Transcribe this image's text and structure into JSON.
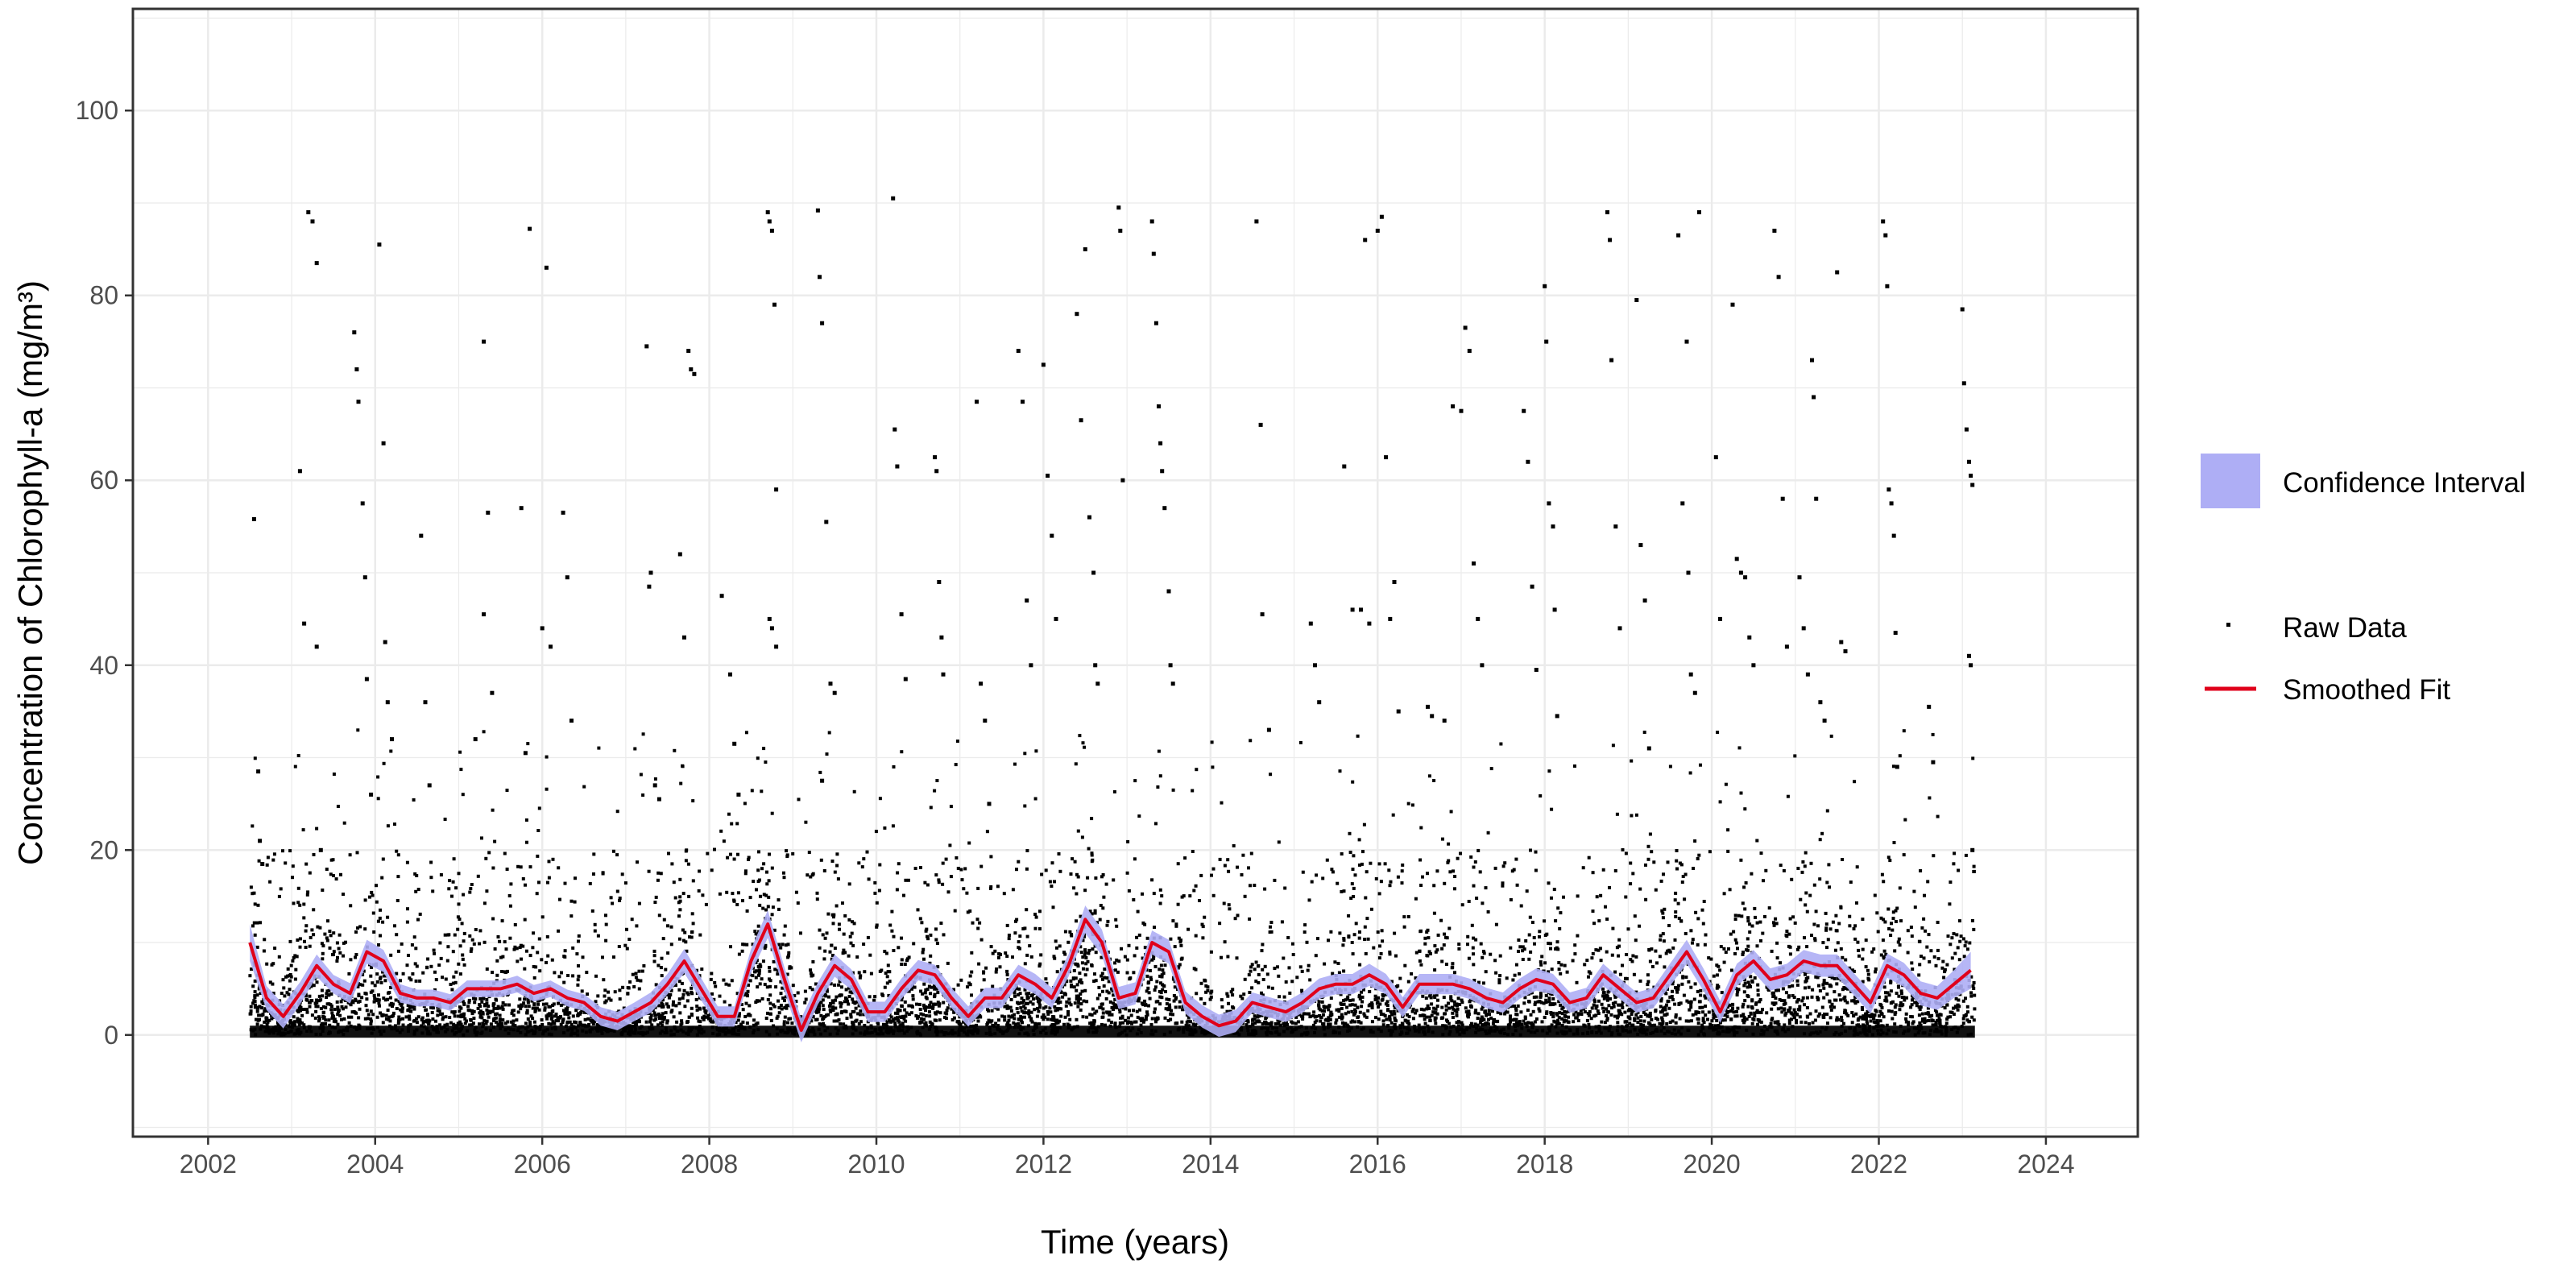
{
  "chart_data": {
    "type": "scatter",
    "xlabel": "Time (years)",
    "ylabel": "Concentration of Chlorophyll-a (mg/m³)",
    "xlim": [
      2001.1,
      2025.1
    ],
    "ylim": [
      -11,
      111
    ],
    "x_ticks": [
      2002,
      2004,
      2006,
      2008,
      2010,
      2012,
      2014,
      2016,
      2018,
      2020,
      2022,
      2024
    ],
    "y_ticks": [
      0,
      20,
      40,
      60,
      80,
      100
    ],
    "x_tick_labels": [
      "2002",
      "2004",
      "2006",
      "2008",
      "2010",
      "2012",
      "2014",
      "2016",
      "2018",
      "2020",
      "2022",
      "2024"
    ],
    "y_tick_labels": [
      "0",
      "20",
      "40",
      "60",
      "80",
      "100"
    ],
    "grid": true,
    "legend_position": "right",
    "legend": {
      "ci_label": "Confidence Interval",
      "raw_label": "Raw Data",
      "fit_label": "Smoothed Fit"
    },
    "colors": {
      "raw": "#000000",
      "fit": "#e0001b",
      "ci": "#aeaef5",
      "grid": "#ebebeb",
      "panel_border": "#333333"
    },
    "data_range": [
      2002.5,
      2023.15
    ],
    "series": [
      {
        "name": "Smoothed Fit",
        "x": [
          2002.5,
          2002.7,
          2002.9,
          2003.1,
          2003.3,
          2003.5,
          2003.7,
          2003.9,
          2004.1,
          2004.3,
          2004.5,
          2004.7,
          2004.9,
          2005.1,
          2005.3,
          2005.5,
          2005.7,
          2005.9,
          2006.1,
          2006.3,
          2006.5,
          2006.7,
          2006.9,
          2007.1,
          2007.3,
          2007.5,
          2007.7,
          2007.9,
          2008.1,
          2008.3,
          2008.5,
          2008.7,
          2008.9,
          2009.1,
          2009.3,
          2009.5,
          2009.7,
          2009.9,
          2010.1,
          2010.3,
          2010.5,
          2010.7,
          2010.9,
          2011.1,
          2011.3,
          2011.5,
          2011.7,
          2011.9,
          2012.1,
          2012.3,
          2012.5,
          2012.7,
          2012.9,
          2013.1,
          2013.3,
          2013.5,
          2013.7,
          2013.9,
          2014.1,
          2014.3,
          2014.5,
          2014.7,
          2014.9,
          2015.1,
          2015.3,
          2015.5,
          2015.7,
          2015.9,
          2016.1,
          2016.3,
          2016.5,
          2016.7,
          2016.9,
          2017.1,
          2017.3,
          2017.5,
          2017.7,
          2017.9,
          2018.1,
          2018.3,
          2018.5,
          2018.7,
          2018.9,
          2019.1,
          2019.3,
          2019.5,
          2019.7,
          2019.9,
          2020.1,
          2020.3,
          2020.5,
          2020.7,
          2020.9,
          2021.1,
          2021.3,
          2021.5,
          2021.7,
          2021.9,
          2022.1,
          2022.3,
          2022.5,
          2022.7,
          2022.9,
          2023.1
        ],
        "y": [
          10.0,
          4.0,
          2.0,
          4.5,
          7.5,
          5.5,
          4.5,
          9.0,
          8.0,
          4.5,
          4.0,
          4.0,
          3.5,
          5.0,
          5.0,
          5.0,
          5.5,
          4.5,
          5.0,
          4.0,
          3.5,
          2.0,
          1.5,
          2.5,
          3.5,
          5.5,
          8.0,
          5.0,
          2.0,
          2.0,
          8.0,
          12.0,
          6.0,
          0.5,
          4.5,
          7.5,
          6.0,
          2.5,
          2.5,
          5.0,
          7.0,
          6.5,
          4.0,
          2.0,
          4.0,
          4.0,
          6.5,
          5.5,
          4.0,
          7.5,
          12.5,
          10.0,
          4.0,
          4.5,
          10.0,
          9.0,
          3.5,
          2.0,
          1.0,
          1.5,
          3.5,
          3.0,
          2.5,
          3.5,
          5.0,
          5.5,
          5.5,
          6.5,
          5.5,
          3.0,
          5.5,
          5.5,
          5.5,
          5.0,
          4.0,
          3.5,
          5.0,
          6.0,
          5.5,
          3.5,
          4.0,
          6.5,
          5.0,
          3.5,
          4.0,
          6.5,
          9.0,
          6.0,
          2.5,
          6.5,
          8.0,
          6.0,
          6.5,
          8.0,
          7.5,
          7.5,
          5.5,
          3.5,
          7.5,
          6.5,
          4.5,
          4.0,
          5.5,
          7.0
        ],
        "ci_halfwidth": [
          2.0,
          1.3,
          1.3,
          1.2,
          1.2,
          1.0,
          1.1,
          1.3,
          1.2,
          1.0,
          0.9,
          0.9,
          0.9,
          0.9,
          0.9,
          0.9,
          0.9,
          0.9,
          0.9,
          0.9,
          0.9,
          1.0,
          1.0,
          1.0,
          1.1,
          1.1,
          1.3,
          1.2,
          1.1,
          1.1,
          1.3,
          1.5,
          1.3,
          1.3,
          1.2,
          1.2,
          1.1,
          1.1,
          1.1,
          1.1,
          1.1,
          1.1,
          1.1,
          1.1,
          1.1,
          1.1,
          1.1,
          1.1,
          1.1,
          1.2,
          1.5,
          1.4,
          1.2,
          1.2,
          1.3,
          1.3,
          1.2,
          1.2,
          1.2,
          1.2,
          1.1,
          1.1,
          1.1,
          1.1,
          1.1,
          1.1,
          1.1,
          1.2,
          1.1,
          1.1,
          1.1,
          1.1,
          1.1,
          1.1,
          1.1,
          1.1,
          1.1,
          1.2,
          1.1,
          1.1,
          1.1,
          1.2,
          1.1,
          1.1,
          1.1,
          1.2,
          1.3,
          1.2,
          1.2,
          1.2,
          1.2,
          1.2,
          1.2,
          1.2,
          1.2,
          1.2,
          1.2,
          1.2,
          1.3,
          1.3,
          1.3,
          1.3,
          1.5,
          2.0
        ]
      },
      {
        "name": "Raw Data",
        "points": [
          [
            2002.55,
            55.8
          ],
          [
            2002.6,
            28.5
          ],
          [
            2002.62,
            21
          ],
          [
            2002.65,
            18.5
          ],
          [
            2003.2,
            89
          ],
          [
            2003.25,
            88
          ],
          [
            2003.3,
            83.5
          ],
          [
            2003.1,
            61
          ],
          [
            2003.15,
            44.5
          ],
          [
            2003.3,
            42
          ],
          [
            2003.35,
            20
          ],
          [
            2003.75,
            76
          ],
          [
            2003.78,
            72
          ],
          [
            2003.8,
            68.5
          ],
          [
            2003.85,
            57.5
          ],
          [
            2003.88,
            49.5
          ],
          [
            2003.9,
            38.5
          ],
          [
            2003.95,
            26
          ],
          [
            2004.05,
            85.5
          ],
          [
            2004.1,
            64
          ],
          [
            2004.12,
            42.5
          ],
          [
            2004.15,
            36
          ],
          [
            2004.2,
            32
          ],
          [
            2004.55,
            54
          ],
          [
            2004.6,
            36
          ],
          [
            2004.65,
            27
          ],
          [
            2005.3,
            75
          ],
          [
            2005.35,
            56.5
          ],
          [
            2005.3,
            45.5
          ],
          [
            2005.4,
            37
          ],
          [
            2005.2,
            32
          ],
          [
            2005.75,
            57
          ],
          [
            2005.8,
            30.5
          ],
          [
            2005.85,
            87.2
          ],
          [
            2006.05,
            83
          ],
          [
            2006.0,
            44
          ],
          [
            2006.1,
            42
          ],
          [
            2006.25,
            56.5
          ],
          [
            2006.3,
            49.5
          ],
          [
            2006.35,
            34
          ],
          [
            2007.25,
            74.5
          ],
          [
            2007.3,
            50
          ],
          [
            2007.28,
            48.5
          ],
          [
            2007.35,
            27
          ],
          [
            2007.4,
            25.5
          ],
          [
            2007.65,
            52
          ],
          [
            2007.75,
            74
          ],
          [
            2007.78,
            72
          ],
          [
            2007.82,
            71.5
          ],
          [
            2007.7,
            43
          ],
          [
            2008.15,
            47.5
          ],
          [
            2008.25,
            39
          ],
          [
            2008.3,
            31.5
          ],
          [
            2008.35,
            26
          ],
          [
            2008.7,
            89
          ],
          [
            2008.72,
            88
          ],
          [
            2008.75,
            87
          ],
          [
            2008.78,
            79
          ],
          [
            2008.8,
            59
          ],
          [
            2008.72,
            45
          ],
          [
            2008.75,
            44
          ],
          [
            2008.8,
            42
          ],
          [
            2009.3,
            89.2
          ],
          [
            2009.32,
            82
          ],
          [
            2009.35,
            77
          ],
          [
            2009.4,
            55.5
          ],
          [
            2009.45,
            38
          ],
          [
            2009.5,
            37
          ],
          [
            2009.35,
            27.5
          ],
          [
            2010.2,
            90.5
          ],
          [
            2010.22,
            65.5
          ],
          [
            2010.25,
            61.5
          ],
          [
            2010.3,
            45.5
          ],
          [
            2010.35,
            38.5
          ],
          [
            2010.7,
            62.5
          ],
          [
            2010.72,
            61
          ],
          [
            2010.75,
            49
          ],
          [
            2010.78,
            43
          ],
          [
            2010.8,
            39
          ],
          [
            2011.2,
            68.5
          ],
          [
            2011.25,
            38
          ],
          [
            2011.3,
            34
          ],
          [
            2011.35,
            25
          ],
          [
            2011.7,
            74
          ],
          [
            2011.75,
            68.5
          ],
          [
            2011.8,
            47
          ],
          [
            2011.85,
            40
          ],
          [
            2012.0,
            72.5
          ],
          [
            2012.05,
            60.5
          ],
          [
            2012.1,
            54
          ],
          [
            2012.15,
            45
          ],
          [
            2012.4,
            78
          ],
          [
            2012.45,
            66.5
          ],
          [
            2012.5,
            85
          ],
          [
            2012.55,
            56
          ],
          [
            2012.6,
            50
          ],
          [
            2012.62,
            40
          ],
          [
            2012.65,
            38
          ],
          [
            2012.9,
            89.5
          ],
          [
            2012.92,
            87
          ],
          [
            2012.95,
            60
          ],
          [
            2013.3,
            88
          ],
          [
            2013.32,
            84.5
          ],
          [
            2013.35,
            77
          ],
          [
            2013.38,
            68
          ],
          [
            2013.4,
            64
          ],
          [
            2013.42,
            61
          ],
          [
            2013.45,
            57
          ],
          [
            2013.5,
            48
          ],
          [
            2013.52,
            40
          ],
          [
            2013.55,
            38
          ],
          [
            2014.55,
            88
          ],
          [
            2014.6,
            66
          ],
          [
            2014.62,
            45.5
          ],
          [
            2014.7,
            33
          ],
          [
            2015.2,
            44.5
          ],
          [
            2015.25,
            40
          ],
          [
            2015.3,
            36
          ],
          [
            2015.6,
            61.5
          ],
          [
            2015.7,
            46
          ],
          [
            2015.8,
            46
          ],
          [
            2015.85,
            86
          ],
          [
            2015.9,
            44.5
          ],
          [
            2016.0,
            87
          ],
          [
            2016.05,
            88.5
          ],
          [
            2016.1,
            62.5
          ],
          [
            2016.15,
            45
          ],
          [
            2016.2,
            49
          ],
          [
            2016.25,
            35
          ],
          [
            2016.6,
            35.5
          ],
          [
            2016.65,
            34.5
          ],
          [
            2016.8,
            34
          ],
          [
            2016.9,
            68
          ],
          [
            2017.0,
            67.5
          ],
          [
            2017.05,
            76.5
          ],
          [
            2017.1,
            74
          ],
          [
            2017.15,
            51
          ],
          [
            2017.2,
            45
          ],
          [
            2017.25,
            40
          ],
          [
            2017.75,
            67.5
          ],
          [
            2017.8,
            62
          ],
          [
            2017.85,
            48.5
          ],
          [
            2017.9,
            39.5
          ],
          [
            2018.0,
            81
          ],
          [
            2018.02,
            75
          ],
          [
            2018.05,
            57.5
          ],
          [
            2018.1,
            55
          ],
          [
            2018.12,
            46
          ],
          [
            2018.15,
            34.5
          ],
          [
            2018.75,
            89
          ],
          [
            2018.78,
            86
          ],
          [
            2018.8,
            73
          ],
          [
            2018.85,
            55
          ],
          [
            2018.9,
            44
          ],
          [
            2019.1,
            79.5
          ],
          [
            2019.15,
            53
          ],
          [
            2019.2,
            47
          ],
          [
            2019.25,
            31
          ],
          [
            2019.6,
            86.5
          ],
          [
            2019.65,
            57.5
          ],
          [
            2019.7,
            75
          ],
          [
            2019.72,
            50
          ],
          [
            2019.75,
            39
          ],
          [
            2019.8,
            37
          ],
          [
            2019.85,
            89
          ],
          [
            2020.05,
            62.5
          ],
          [
            2020.1,
            45
          ],
          [
            2020.25,
            79
          ],
          [
            2020.3,
            51.5
          ],
          [
            2020.35,
            50
          ],
          [
            2020.4,
            49.5
          ],
          [
            2020.45,
            43
          ],
          [
            2020.5,
            40
          ],
          [
            2020.75,
            87
          ],
          [
            2020.8,
            82
          ],
          [
            2020.85,
            58
          ],
          [
            2020.9,
            42
          ],
          [
            2021.05,
            49.5
          ],
          [
            2021.1,
            44
          ],
          [
            2021.15,
            39
          ],
          [
            2021.2,
            73
          ],
          [
            2021.22,
            69
          ],
          [
            2021.25,
            58
          ],
          [
            2021.3,
            36
          ],
          [
            2021.35,
            34
          ],
          [
            2021.5,
            82.5
          ],
          [
            2021.55,
            42.5
          ],
          [
            2021.6,
            41.5
          ],
          [
            2022.05,
            88
          ],
          [
            2022.08,
            86.5
          ],
          [
            2022.1,
            81
          ],
          [
            2022.12,
            59
          ],
          [
            2022.15,
            57.5
          ],
          [
            2022.18,
            54
          ],
          [
            2022.2,
            43.5
          ],
          [
            2022.22,
            29
          ],
          [
            2022.6,
            35.5
          ],
          [
            2022.65,
            29.5
          ],
          [
            2023.0,
            78.5
          ],
          [
            2023.02,
            70.5
          ],
          [
            2023.05,
            65.5
          ],
          [
            2023.08,
            62
          ],
          [
            2023.1,
            60.5
          ],
          [
            2023.12,
            59.5
          ],
          [
            2023.08,
            41
          ],
          [
            2023.1,
            40
          ],
          [
            2023.12,
            20
          ]
        ]
      }
    ]
  }
}
